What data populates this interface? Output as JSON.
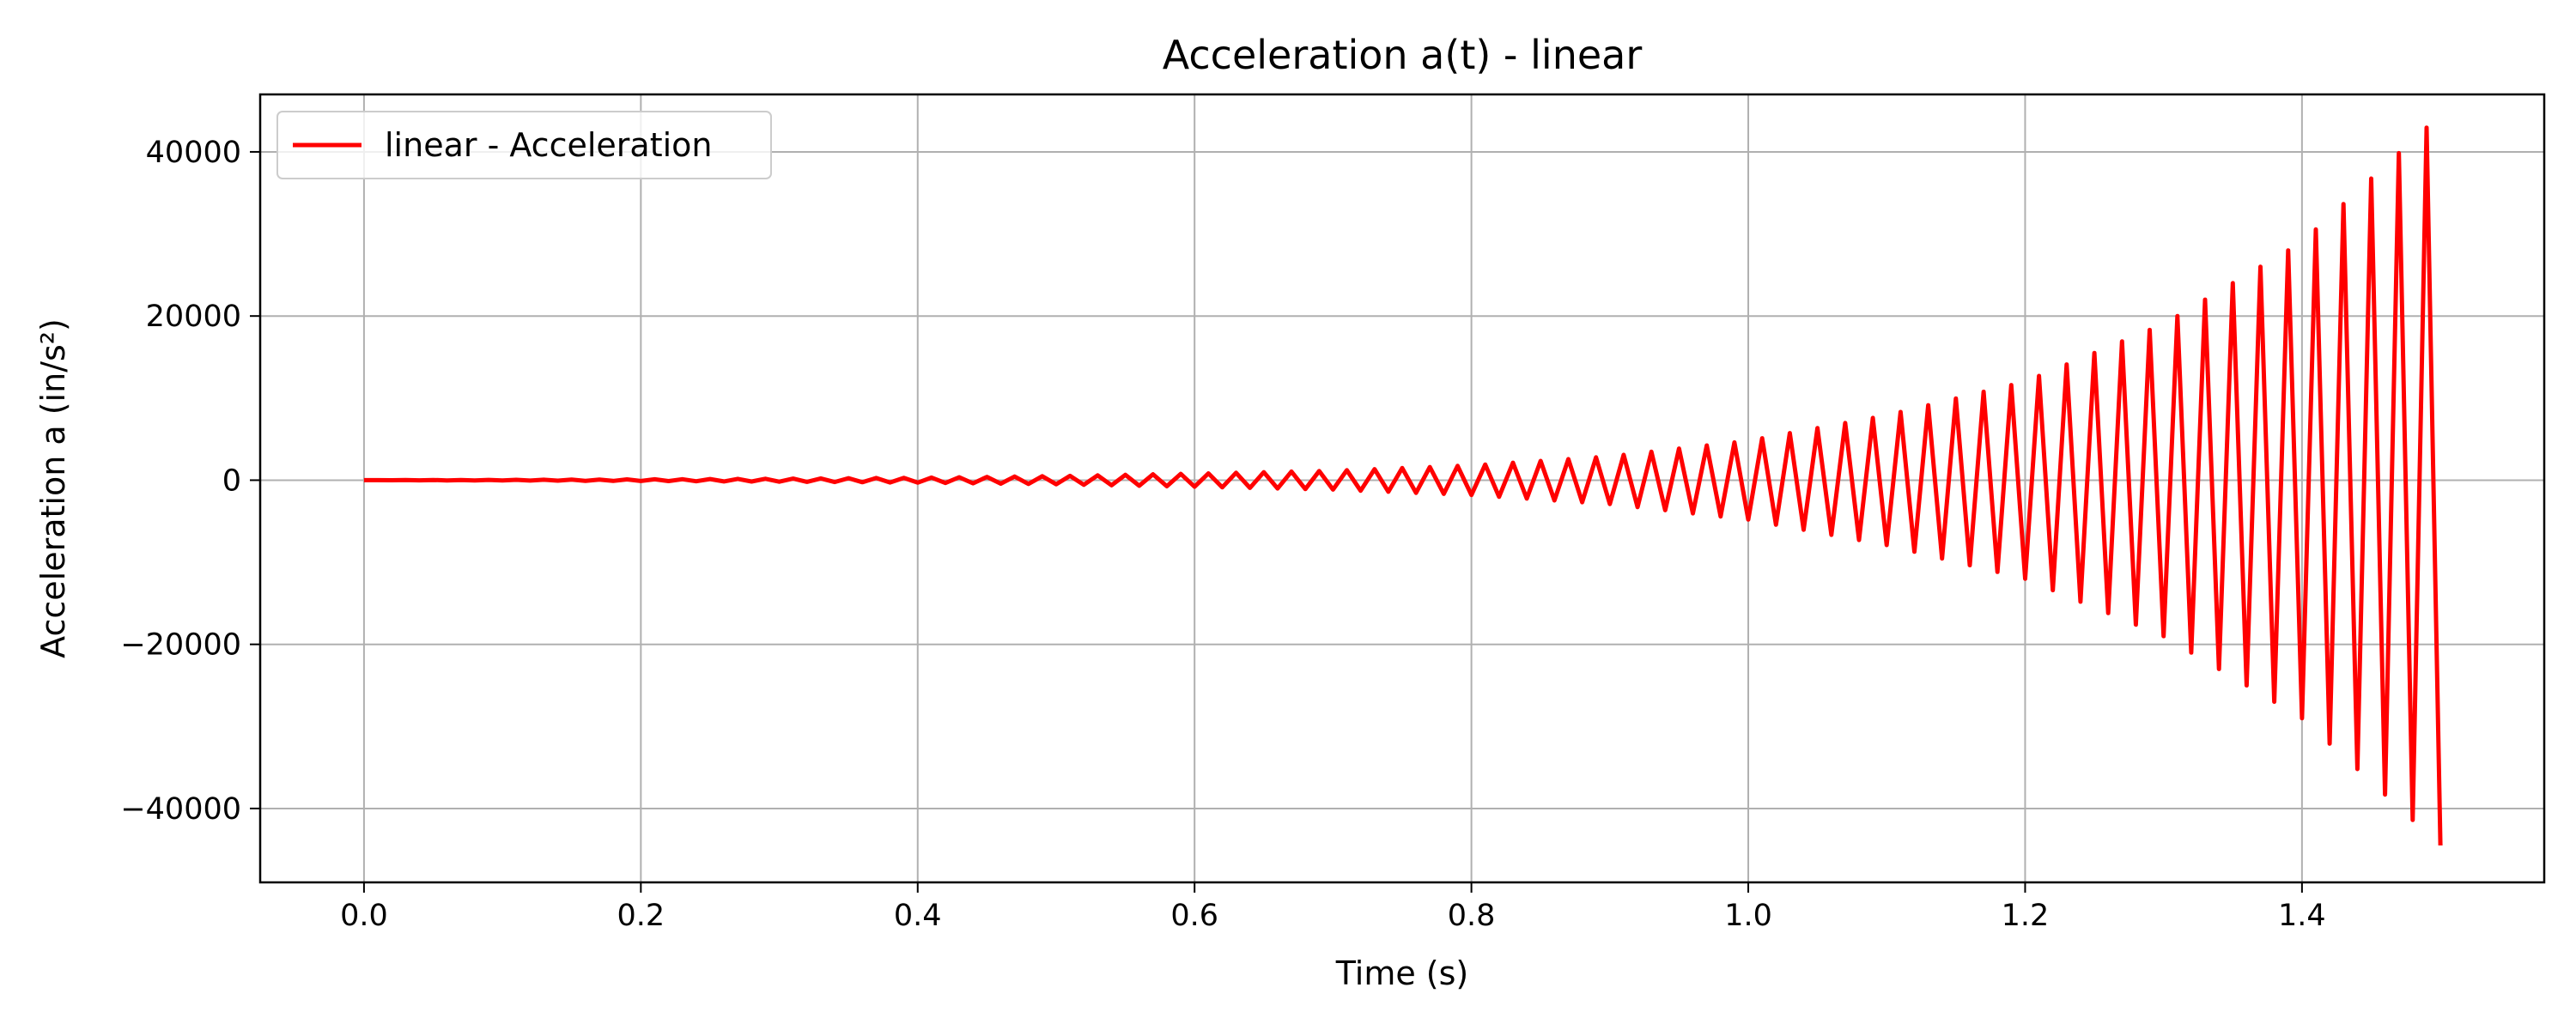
{
  "chart_data": {
    "type": "line",
    "title": "Acceleration a(t) - linear",
    "xlabel": "Time (s)",
    "ylabel": "Acceleration a (in/s²)",
    "xlim": [
      -0.075,
      1.575
    ],
    "ylim": [
      -49000,
      47000
    ],
    "xticks": [
      {
        "value": 0.0,
        "label": "0.0"
      },
      {
        "value": 0.2,
        "label": "0.2"
      },
      {
        "value": 0.4,
        "label": "0.4"
      },
      {
        "value": 0.6,
        "label": "0.6"
      },
      {
        "value": 0.8,
        "label": "0.8"
      },
      {
        "value": 1.0,
        "label": "1.0"
      },
      {
        "value": 1.2,
        "label": "1.2"
      },
      {
        "value": 1.4,
        "label": "1.4"
      }
    ],
    "yticks": [
      {
        "value": 40000,
        "label": "40000"
      },
      {
        "value": 20000,
        "label": "20000"
      },
      {
        "value": 0,
        "label": "0"
      },
      {
        "value": -20000,
        "label": "−20000"
      },
      {
        "value": -40000,
        "label": "−40000"
      }
    ],
    "grid": true,
    "legend_position": "top-left",
    "series": [
      {
        "name": "linear - Acceleration",
        "color": "#ff0000",
        "description": "alternating oscillation every 0.01 s from t=0 to t=1.5, envelope growing",
        "envelope_points": [
          {
            "t": 0.0,
            "amp": 0
          },
          {
            "t": 0.1,
            "amp": 40
          },
          {
            "t": 0.2,
            "amp": 100
          },
          {
            "t": 0.3,
            "amp": 180
          },
          {
            "t": 0.4,
            "amp": 300
          },
          {
            "t": 0.5,
            "amp": 500
          },
          {
            "t": 0.6,
            "amp": 800
          },
          {
            "t": 0.7,
            "amp": 1150
          },
          {
            "t": 0.8,
            "amp": 1800
          },
          {
            "t": 0.9,
            "amp": 2900
          },
          {
            "t": 1.0,
            "amp": 4800
          },
          {
            "t": 1.1,
            "amp": 7900
          },
          {
            "t": 1.2,
            "amp": 12000
          },
          {
            "t": 1.3,
            "amp": 19000
          },
          {
            "t": 1.4,
            "amp": 29000
          },
          {
            "t": 1.5,
            "amp": 44500
          }
        ]
      }
    ]
  }
}
